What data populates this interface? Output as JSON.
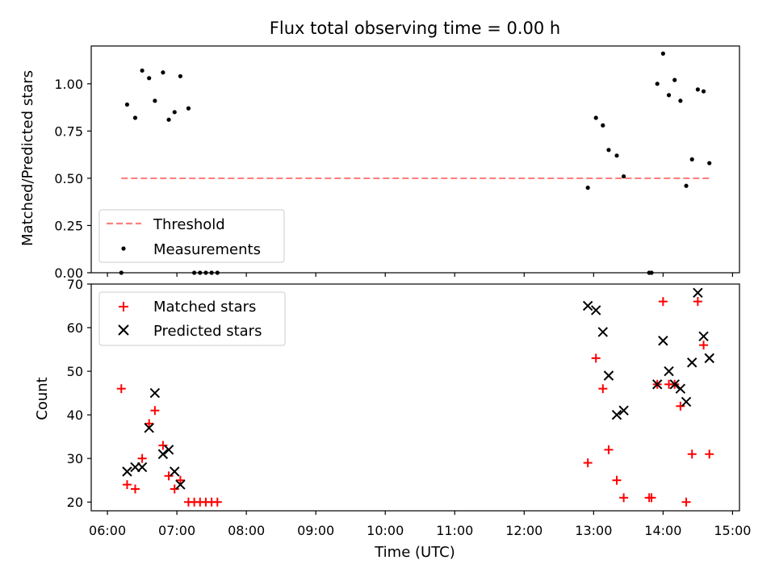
{
  "chart_data": [
    {
      "type": "scatter",
      "title": "Flux total observing time = 0.00 h",
      "ylabel": "Matched/Predicted stars",
      "ylim": [
        0,
        1.2
      ],
      "yticks": [
        "0.00",
        "0.25",
        "0.50",
        "0.75",
        "1.00"
      ],
      "yticks_values": [
        0,
        0.25,
        0.5,
        0.75,
        1.0
      ],
      "xlim": [
        "06:00",
        "15:00"
      ],
      "grid": false,
      "legend": {
        "placement": "lower-left",
        "entries": [
          "Threshold",
          "Measurements"
        ]
      },
      "threshold": {
        "name": "Threshold",
        "value": 0.5,
        "x_start": "06:12",
        "x_end": "14:40",
        "color": "#ff8080"
      },
      "series": [
        {
          "name": "Measurements",
          "color": "#000000",
          "x": [
            "06:12",
            "06:17",
            "06:24",
            "06:30",
            "06:36",
            "06:41",
            "06:48",
            "06:53",
            "06:58",
            "07:03",
            "07:10",
            "07:15",
            "07:20",
            "07:25",
            "07:30",
            "07:35",
            "12:55",
            "13:02",
            "13:08",
            "13:13",
            "13:20",
            "13:26",
            "13:48",
            "13:50",
            "13:55",
            "14:00",
            "14:05",
            "14:10",
            "14:15",
            "14:20",
            "14:25",
            "14:30",
            "14:35",
            "14:40"
          ],
          "y": [
            0.0,
            0.89,
            0.82,
            1.07,
            1.03,
            0.91,
            1.06,
            0.81,
            0.85,
            1.04,
            0.87,
            0.0,
            0.0,
            0.0,
            0.0,
            0.0,
            0.45,
            0.82,
            0.78,
            0.65,
            0.62,
            0.51,
            0.0,
            0.0,
            1.0,
            1.16,
            0.94,
            1.02,
            0.91,
            0.46,
            0.6,
            0.97,
            0.96,
            0.58
          ]
        }
      ]
    },
    {
      "type": "scatter",
      "xlabel": "Time (UTC)",
      "ylabel": "Count",
      "ylim": [
        18,
        70
      ],
      "yticks": [
        "20",
        "30",
        "40",
        "50",
        "60",
        "70"
      ],
      "yticks_values": [
        20,
        30,
        40,
        50,
        60,
        70
      ],
      "xlim": [
        "06:00",
        "15:00"
      ],
      "xticks": [
        "06:00",
        "07:00",
        "08:00",
        "09:00",
        "10:00",
        "11:00",
        "12:00",
        "13:00",
        "14:00",
        "15:00"
      ],
      "grid": false,
      "legend": {
        "placement": "top-left",
        "entries": [
          "Matched stars",
          "Predicted stars"
        ]
      },
      "series": [
        {
          "name": "Matched stars",
          "color": "#ff0000",
          "marker": "plus",
          "x": [
            "06:12",
            "06:17",
            "06:24",
            "06:30",
            "06:36",
            "06:41",
            "06:48",
            "06:53",
            "06:58",
            "07:03",
            "07:10",
            "07:15",
            "07:20",
            "07:25",
            "07:30",
            "07:35",
            "12:55",
            "13:02",
            "13:08",
            "13:13",
            "13:20",
            "13:26",
            "13:48",
            "13:50",
            "13:55",
            "14:00",
            "14:05",
            "14:10",
            "14:15",
            "14:20",
            "14:25",
            "14:30",
            "14:35",
            "14:40"
          ],
          "y": [
            46,
            24,
            23,
            30,
            38,
            41,
            33,
            26,
            23,
            25,
            20,
            20,
            20,
            20,
            20,
            20,
            29,
            53,
            46,
            32,
            25,
            21,
            21,
            21,
            47,
            66,
            47,
            47,
            42,
            20,
            31,
            66,
            56,
            31
          ]
        },
        {
          "name": "Predicted stars",
          "color": "#000000",
          "marker": "x",
          "x": [
            "06:17",
            "06:24",
            "06:30",
            "06:36",
            "06:41",
            "06:48",
            "06:53",
            "06:58",
            "07:03",
            "12:55",
            "13:02",
            "13:08",
            "13:13",
            "13:20",
            "13:26",
            "13:55",
            "14:00",
            "14:05",
            "14:10",
            "14:15",
            "14:20",
            "14:25",
            "14:30",
            "14:35",
            "14:40"
          ],
          "y": [
            27,
            28,
            28,
            37,
            45,
            31,
            32,
            27,
            24,
            65,
            64,
            59,
            49,
            40,
            41,
            47,
            57,
            50,
            47,
            46,
            43,
            52,
            68,
            58,
            53
          ]
        }
      ]
    }
  ]
}
